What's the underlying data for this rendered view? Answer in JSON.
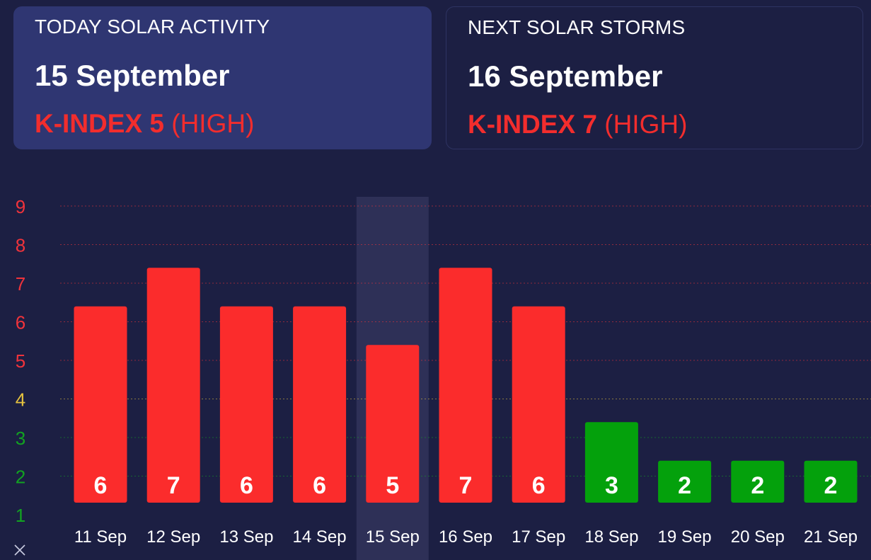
{
  "today": {
    "label": "TODAY SOLAR ACTIVITY",
    "date": "15 September",
    "kindex_label": "K-INDEX 5",
    "level": "(HIGH)"
  },
  "next": {
    "label": "NEXT SOLAR STORMS",
    "date": "16 September",
    "kindex_label": "K-INDEX 7",
    "level": "(HIGH)"
  },
  "colors": {
    "high": "#fb2c2c",
    "low": "#04a10c",
    "highlight": "#2e3057",
    "tick_red": "#f0333b",
    "tick_yellow": "#e5c23f",
    "tick_green": "#12a321"
  },
  "chart_data": {
    "type": "bar",
    "categories": [
      "11 Sep",
      "12 Sep",
      "13 Sep",
      "14 Sep",
      "15 Sep",
      "16 Sep",
      "17 Sep",
      "18 Sep",
      "19 Sep",
      "20 Sep",
      "21 Sep"
    ],
    "values": [
      6,
      7,
      6,
      6,
      5,
      7,
      6,
      3,
      2,
      2,
      2
    ],
    "data_labels": [
      "6",
      "7",
      "6",
      "6",
      "5",
      "7",
      "6",
      "3",
      "2",
      "2",
      "2"
    ],
    "highlight_category": "15 Sep",
    "yticks": [
      "1",
      "2",
      "3",
      "4",
      "5",
      "6",
      "7",
      "8",
      "9"
    ],
    "ylim": [
      1,
      9
    ],
    "xlabel": "",
    "ylabel": "",
    "grid": true
  }
}
